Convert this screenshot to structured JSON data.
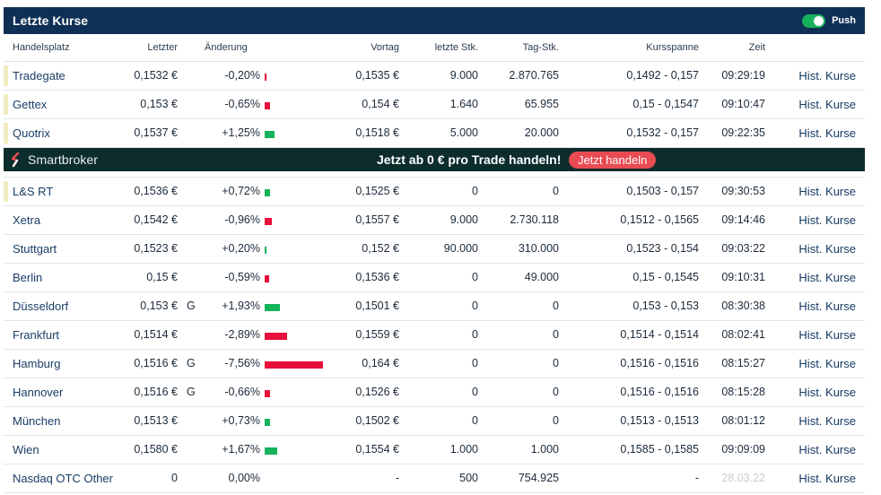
{
  "widget": {
    "title": "Letzte Kurse",
    "push_label": "Push",
    "push_enabled": true
  },
  "columns": {
    "handelsplatz": "Handelsplatz",
    "letzter": "Letzter",
    "aenderung": "Änderung",
    "vortag": "Vortag",
    "letzte_stk": "letzte Stk.",
    "tag_stk": "Tag-Stk.",
    "kursspanne": "Kursspanne",
    "zeit": "Zeit"
  },
  "colors": {
    "header_bg": "#0e3055",
    "positive": "#15b35b",
    "negative": "#e8103b",
    "promo_bg": "#0d2d2d",
    "promo_button": "#e94b52",
    "marker": "#f1ecbe"
  },
  "rows_top": [
    {
      "place": "Tradegate",
      "last": "0,1532 €",
      "flag": "",
      "change": "-0,20%",
      "change_pct": -0.2,
      "prev": "0,1535 €",
      "last_qty": "9.000",
      "day_qty": "2.870.765",
      "range": "0,1492 - 0,157",
      "time": "09:29:19",
      "link": "Hist. Kurse",
      "marked": true
    },
    {
      "place": "Gettex",
      "last": "0,153 €",
      "flag": "",
      "change": "-0,65%",
      "change_pct": -0.65,
      "prev": "0,154 €",
      "last_qty": "1.640",
      "day_qty": "65.955",
      "range": "0,15 - 0,1547",
      "time": "09:10:47",
      "link": "Hist. Kurse",
      "marked": true
    },
    {
      "place": "Quotrix",
      "last": "0,1537 €",
      "flag": "",
      "change": "+1,25%",
      "change_pct": 1.25,
      "prev": "0,1518 €",
      "last_qty": "5.000",
      "day_qty": "20.000",
      "range": "0,1532 - 0,157",
      "time": "09:22:35",
      "link": "Hist. Kurse",
      "marked": true
    }
  ],
  "promo": {
    "brand": "Smartbroker",
    "text": "Jetzt ab 0 € pro Trade handeln!",
    "button": "Jetzt handeln"
  },
  "rows_bottom": [
    {
      "place": "L&S RT",
      "last": "0,1536 €",
      "flag": "",
      "change": "+0,72%",
      "change_pct": 0.72,
      "prev": "0,1525 €",
      "last_qty": "0",
      "day_qty": "0",
      "range": "0,1503 - 0,157",
      "time": "09:30:53",
      "link": "Hist. Kurse",
      "marked": true
    },
    {
      "place": "Xetra",
      "last": "0,1542 €",
      "flag": "",
      "change": "-0,96%",
      "change_pct": -0.96,
      "prev": "0,1557 €",
      "last_qty": "9.000",
      "day_qty": "2.730.118",
      "range": "0,1512 - 0,1565",
      "time": "09:14:46",
      "link": "Hist. Kurse",
      "marked": false
    },
    {
      "place": "Stuttgart",
      "last": "0,1523 €",
      "flag": "",
      "change": "+0,20%",
      "change_pct": 0.2,
      "prev": "0,152 €",
      "last_qty": "90.000",
      "day_qty": "310.000",
      "range": "0,1523 - 0,154",
      "time": "09:03:22",
      "link": "Hist. Kurse",
      "marked": false
    },
    {
      "place": "Berlin",
      "last": "0,15 €",
      "flag": "",
      "change": "-0,59%",
      "change_pct": -0.59,
      "prev": "0,1536 €",
      "last_qty": "0",
      "day_qty": "49.000",
      "range": "0,15 - 0,1545",
      "time": "09:10:31",
      "link": "Hist. Kurse",
      "marked": false
    },
    {
      "place": "Düsseldorf",
      "last": "0,153 €",
      "flag": "G",
      "change": "+1,93%",
      "change_pct": 1.93,
      "prev": "0,1501 €",
      "last_qty": "0",
      "day_qty": "0",
      "range": "0,153 - 0,153",
      "time": "08:30:38",
      "link": "Hist. Kurse",
      "marked": false
    },
    {
      "place": "Frankfurt",
      "last": "0,1514 €",
      "flag": "",
      "change": "-2,89%",
      "change_pct": -2.89,
      "prev": "0,1559 €",
      "last_qty": "0",
      "day_qty": "0",
      "range": "0,1514 - 0,1514",
      "time": "08:02:41",
      "link": "Hist. Kurse",
      "marked": false
    },
    {
      "place": "Hamburg",
      "last": "0,1516 €",
      "flag": "G",
      "change": "-7,56%",
      "change_pct": -7.56,
      "prev": "0,164 €",
      "last_qty": "0",
      "day_qty": "0",
      "range": "0,1516 - 0,1516",
      "time": "08:15:27",
      "link": "Hist. Kurse",
      "marked": false
    },
    {
      "place": "Hannover",
      "last": "0,1516 €",
      "flag": "G",
      "change": "-0,66%",
      "change_pct": -0.66,
      "prev": "0,1526 €",
      "last_qty": "0",
      "day_qty": "0",
      "range": "0,1516 - 0,1516",
      "time": "08:15:28",
      "link": "Hist. Kurse",
      "marked": false
    },
    {
      "place": "München",
      "last": "0,1513 €",
      "flag": "",
      "change": "+0,73%",
      "change_pct": 0.73,
      "prev": "0,1502 €",
      "last_qty": "0",
      "day_qty": "0",
      "range": "0,1513 - 0,1513",
      "time": "08:01:12",
      "link": "Hist. Kurse",
      "marked": false
    },
    {
      "place": "Wien",
      "last": "0,1580 €",
      "flag": "",
      "change": "+1,67%",
      "change_pct": 1.67,
      "prev": "0,1554 €",
      "last_qty": "1.000",
      "day_qty": "1.000",
      "range": "0,1585 - 0,1585",
      "time": "09:09:09",
      "link": "Hist. Kurse",
      "marked": false
    },
    {
      "place": "Nasdaq OTC Other",
      "last": "0",
      "flag": "",
      "change": "0,00%",
      "change_pct": 0,
      "prev": "-",
      "last_qty": "500",
      "day_qty": "754.925",
      "range": "-",
      "time": "28.03.22",
      "time_faded": true,
      "link": "Hist. Kurse",
      "marked": false
    }
  ]
}
